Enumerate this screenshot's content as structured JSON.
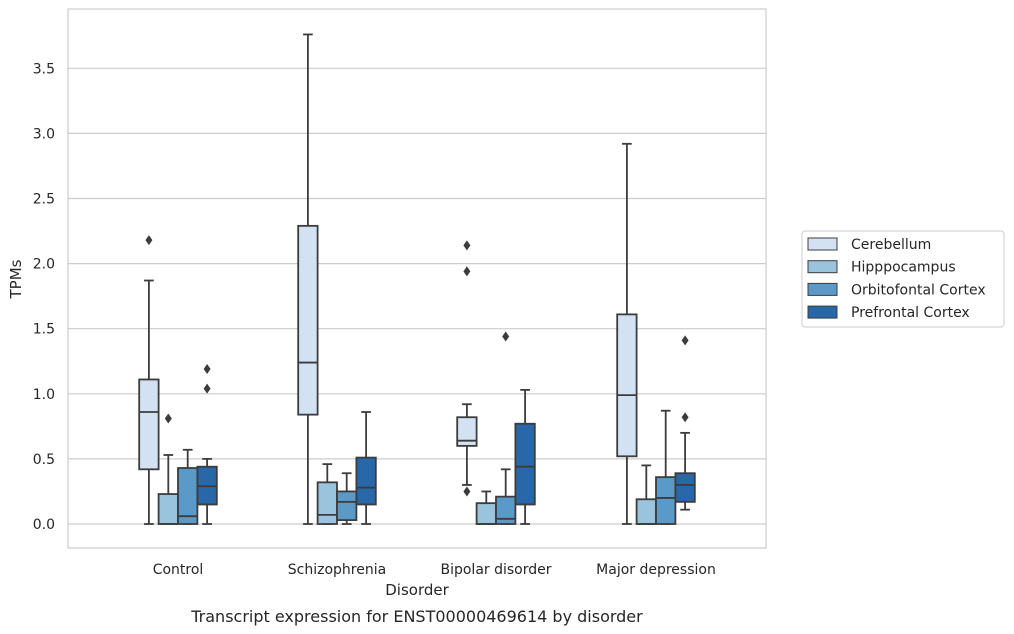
{
  "caption": "Transcript expression for ENST00000469614 by disorder",
  "chart_data": {
    "type": "box",
    "xlabel": "Disorder",
    "ylabel": "TPMs",
    "ylim": [
      -0.18,
      3.95
    ],
    "yticks": [
      "0.0",
      "0.5",
      "1.0",
      "1.5",
      "2.0",
      "2.5",
      "3.0",
      "3.5"
    ],
    "grid": "horizontal",
    "legend_position": "center-right",
    "categories": [
      "Control",
      "Schizophrenia",
      "Bipolar disorder",
      "Major depression"
    ],
    "series": [
      {
        "name": "Cerebellum",
        "color": "#d3e2f2",
        "boxes": [
          {
            "whislo": 0.0,
            "q1": 0.42,
            "med": 0.86,
            "q3": 1.11,
            "whishi": 1.87,
            "fliers": [
              2.18
            ]
          },
          {
            "whislo": 0.0,
            "q1": 0.84,
            "med": 1.24,
            "q3": 2.29,
            "whishi": 3.76,
            "fliers": []
          },
          {
            "whislo": 0.3,
            "q1": 0.6,
            "med": 0.64,
            "q3": 0.82,
            "whishi": 0.92,
            "fliers": [
              0.25,
              1.94,
              2.14
            ]
          },
          {
            "whislo": 0.0,
            "q1": 0.52,
            "med": 0.99,
            "q3": 1.61,
            "whishi": 2.92,
            "fliers": []
          }
        ]
      },
      {
        "name": "Hipppocampus",
        "color": "#9ac3de",
        "boxes": [
          {
            "whislo": 0.0,
            "q1": 0.0,
            "med": 0.0,
            "q3": 0.23,
            "whishi": 0.53,
            "fliers": [
              0.81
            ]
          },
          {
            "whislo": 0.0,
            "q1": 0.0,
            "med": 0.07,
            "q3": 0.32,
            "whishi": 0.46,
            "fliers": []
          },
          {
            "whislo": 0.0,
            "q1": 0.0,
            "med": 0.0,
            "q3": 0.16,
            "whishi": 0.25,
            "fliers": []
          },
          {
            "whislo": 0.0,
            "q1": 0.0,
            "med": 0.0,
            "q3": 0.19,
            "whishi": 0.45,
            "fliers": []
          }
        ]
      },
      {
        "name": "Orbitofontal Cortex",
        "color": "#5b9ac8",
        "boxes": [
          {
            "whislo": 0.0,
            "q1": 0.0,
            "med": 0.06,
            "q3": 0.43,
            "whishi": 0.57,
            "fliers": []
          },
          {
            "whislo": 0.0,
            "q1": 0.03,
            "med": 0.17,
            "q3": 0.25,
            "whishi": 0.39,
            "fliers": []
          },
          {
            "whislo": 0.0,
            "q1": 0.0,
            "med": 0.04,
            "q3": 0.21,
            "whishi": 0.42,
            "fliers": [
              1.44
            ]
          },
          {
            "whislo": 0.0,
            "q1": 0.0,
            "med": 0.2,
            "q3": 0.36,
            "whishi": 0.87,
            "fliers": []
          }
        ]
      },
      {
        "name": "Prefrontal Cortex",
        "color": "#2868a8",
        "boxes": [
          {
            "whislo": 0.0,
            "q1": 0.15,
            "med": 0.29,
            "q3": 0.44,
            "whishi": 0.5,
            "fliers": [
              1.04,
              1.19
            ]
          },
          {
            "whislo": 0.0,
            "q1": 0.15,
            "med": 0.28,
            "q3": 0.51,
            "whishi": 0.86,
            "fliers": []
          },
          {
            "whislo": 0.0,
            "q1": 0.15,
            "med": 0.44,
            "q3": 0.77,
            "whishi": 1.03,
            "fliers": []
          },
          {
            "whislo": 0.11,
            "q1": 0.17,
            "med": 0.3,
            "q3": 0.39,
            "whishi": 0.7,
            "fliers": [
              0.82,
              1.41
            ]
          }
        ]
      }
    ]
  }
}
